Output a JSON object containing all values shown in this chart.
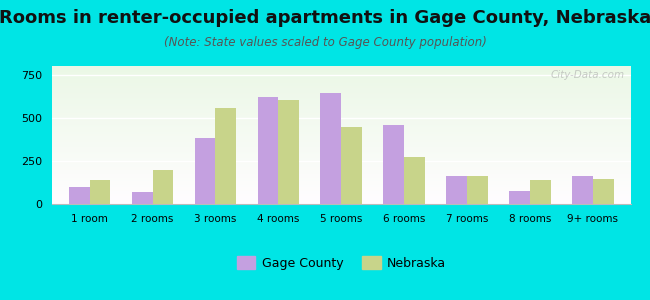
{
  "title": "Rooms in renter-occupied apartments in Gage County, Nebraska",
  "subtitle": "(Note: State values scaled to Gage County population)",
  "categories": [
    "1 room",
    "2 rooms",
    "3 rooms",
    "4 rooms",
    "5 rooms",
    "6 rooms",
    "7 rooms",
    "8 rooms",
    "9+ rooms"
  ],
  "gage_county": [
    100,
    70,
    385,
    620,
    645,
    460,
    165,
    75,
    165
  ],
  "nebraska": [
    140,
    195,
    555,
    605,
    445,
    270,
    160,
    140,
    145
  ],
  "gage_color": "#c4a0e0",
  "nebraska_color": "#c8d48a",
  "ylim": [
    0,
    800
  ],
  "yticks": [
    0,
    250,
    500,
    750
  ],
  "background_color": "#00e5e5",
  "title_fontsize": 13,
  "subtitle_fontsize": 8.5,
  "watermark": "City-Data.com"
}
